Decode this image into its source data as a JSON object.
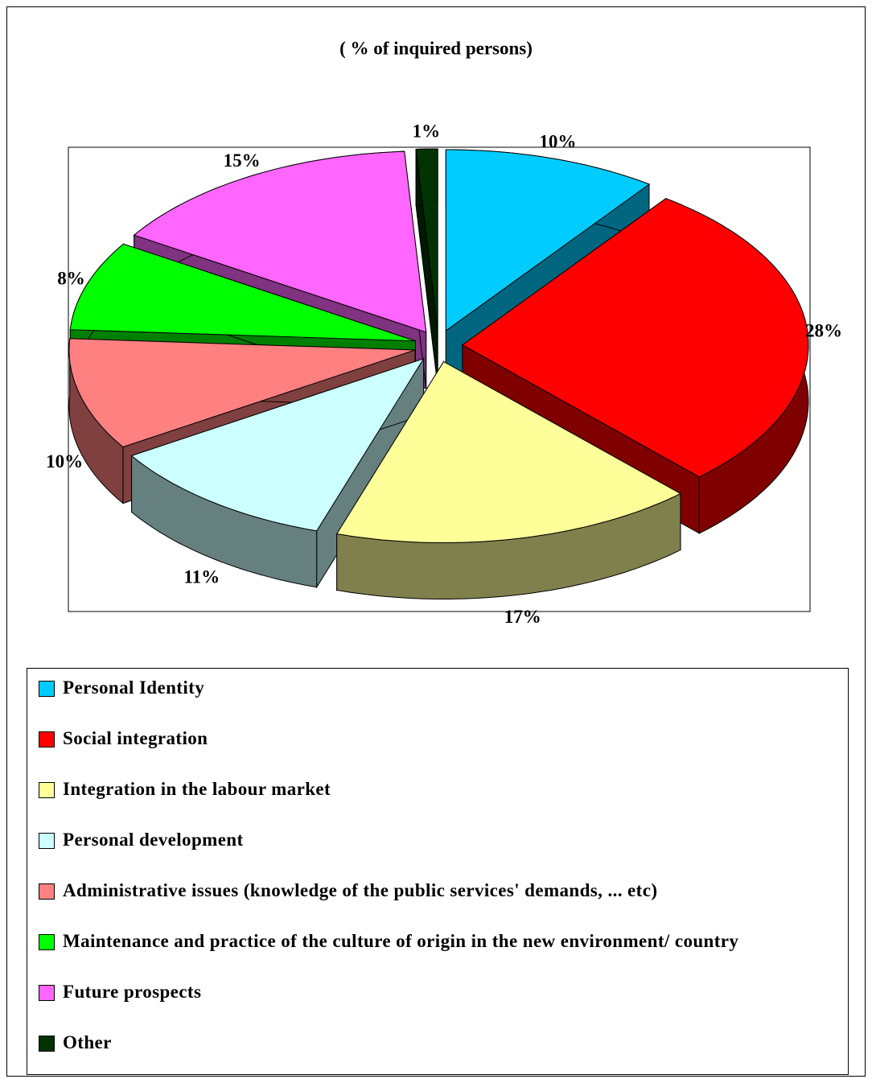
{
  "chart_data": {
    "type": "pie3d",
    "title": "( % of inquired persons)",
    "categories": [
      "Personal Identity",
      "Social integration",
      "Integration in the labour market",
      "Personal development",
      "Administrative issues (knowledge of the public services' demands, ... etc)",
      "Maintenance and practice of the culture of origin in the new environment/ country",
      "Future prospects",
      "Other"
    ],
    "values": [
      10,
      28,
      17,
      11,
      10,
      8,
      15,
      1
    ],
    "value_labels": [
      "10%",
      "28%",
      "17%",
      "11%",
      "10%",
      "8%",
      "15%",
      "1%"
    ],
    "colors": [
      "#00ccff",
      "#ff0000",
      "#ffff99",
      "#ccffff",
      "#ff8080",
      "#00ff00",
      "#ff66ff",
      "#003300"
    ]
  }
}
